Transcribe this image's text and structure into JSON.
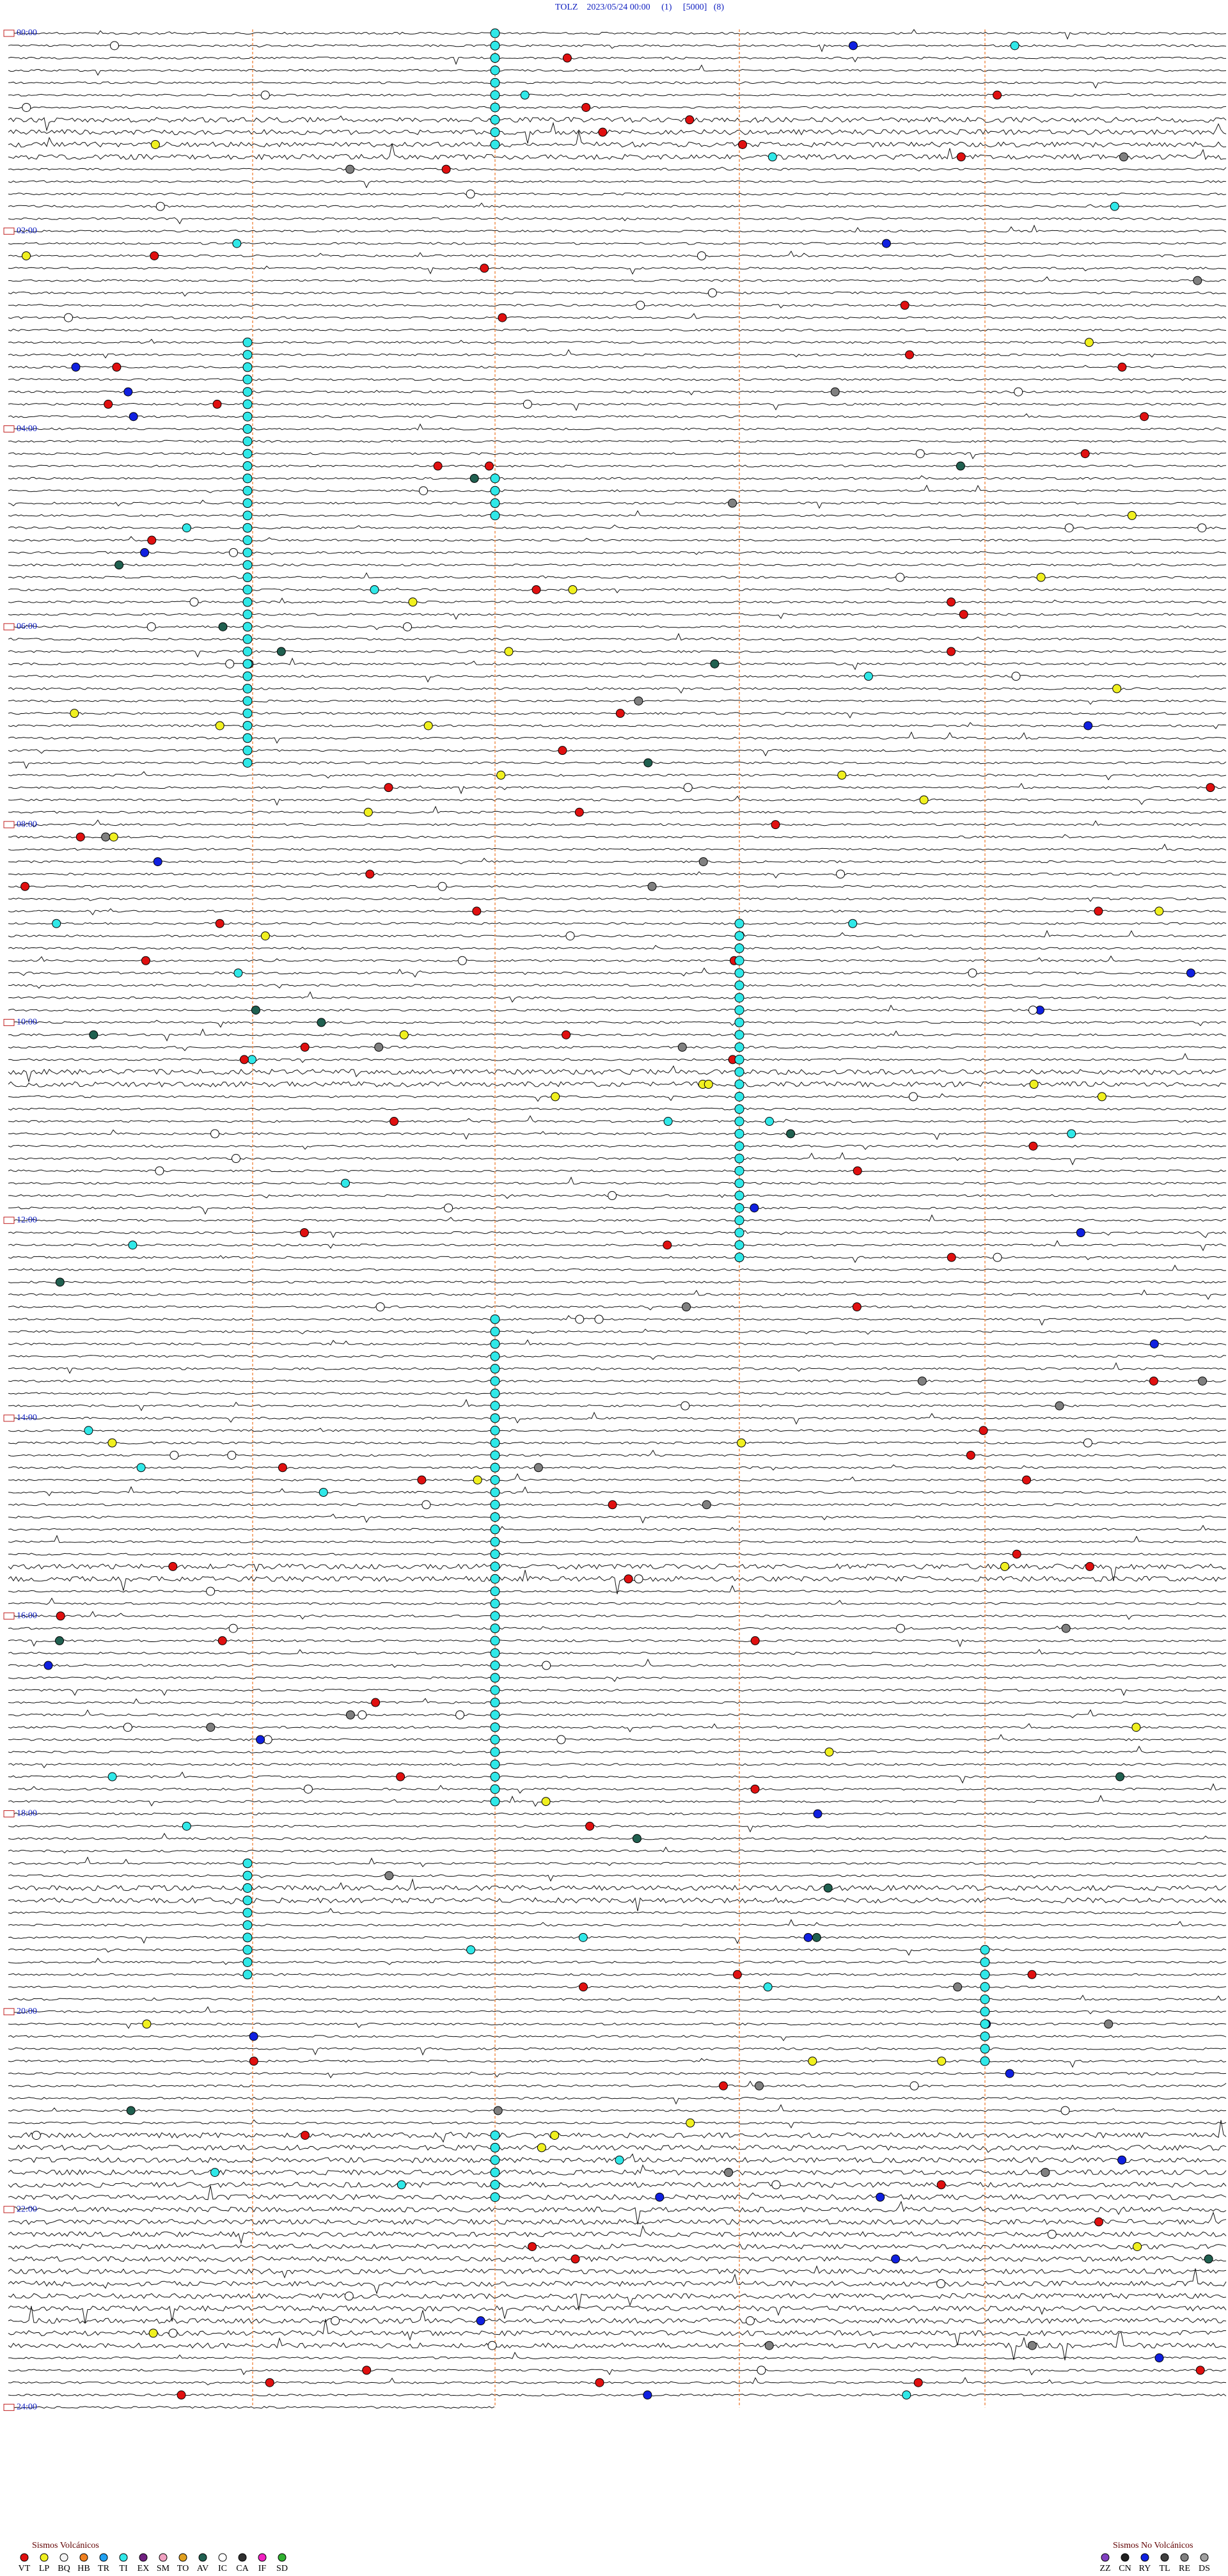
{
  "header": {
    "title": "TOLZ    2023/05/24 00:00     (1)     [5000]   (8)"
  },
  "hour_labels": [
    "00:00",
    "02:00",
    "04:00",
    "06:00",
    "08:00",
    "10:00",
    "12:00",
    "14:00",
    "16:00",
    "18:00",
    "20:00",
    "22:00",
    "24:00"
  ],
  "legend": {
    "volcanic": {
      "title": "Sismos Volcánicos",
      "items": [
        {
          "code": "VT",
          "color": "#e01010"
        },
        {
          "code": "LP",
          "color": "#f0f020"
        },
        {
          "code": "BQ",
          "color": "#f4f4f4"
        },
        {
          "code": "HB",
          "color": "#f08020"
        },
        {
          "code": "TR",
          "color": "#20a0f0"
        },
        {
          "code": "TI",
          "color": "#30e8e8"
        },
        {
          "code": "EX",
          "color": "#702080"
        },
        {
          "code": "SM",
          "color": "#f0a0c0"
        },
        {
          "code": "TO",
          "color": "#e0a020"
        },
        {
          "code": "AV",
          "color": "#206050"
        },
        {
          "code": "IC",
          "color": "#ffffff"
        },
        {
          "code": "CA",
          "color": "#303030"
        },
        {
          "code": "IF",
          "color": "#f020c0"
        },
        {
          "code": "SD",
          "color": "#30b030"
        }
      ]
    },
    "non_volcanic": {
      "title": "Sismos No Volcánicos",
      "items": [
        {
          "code": "ZZ",
          "color": "#8040c0"
        },
        {
          "code": "CN",
          "color": "#202020"
        },
        {
          "code": "RY",
          "color": "#1020e0"
        },
        {
          "code": "TL",
          "color": "#404040"
        },
        {
          "code": "RE",
          "color": "#808080"
        },
        {
          "code": "DS",
          "color": "#a0a0a0"
        }
      ]
    }
  }
}
